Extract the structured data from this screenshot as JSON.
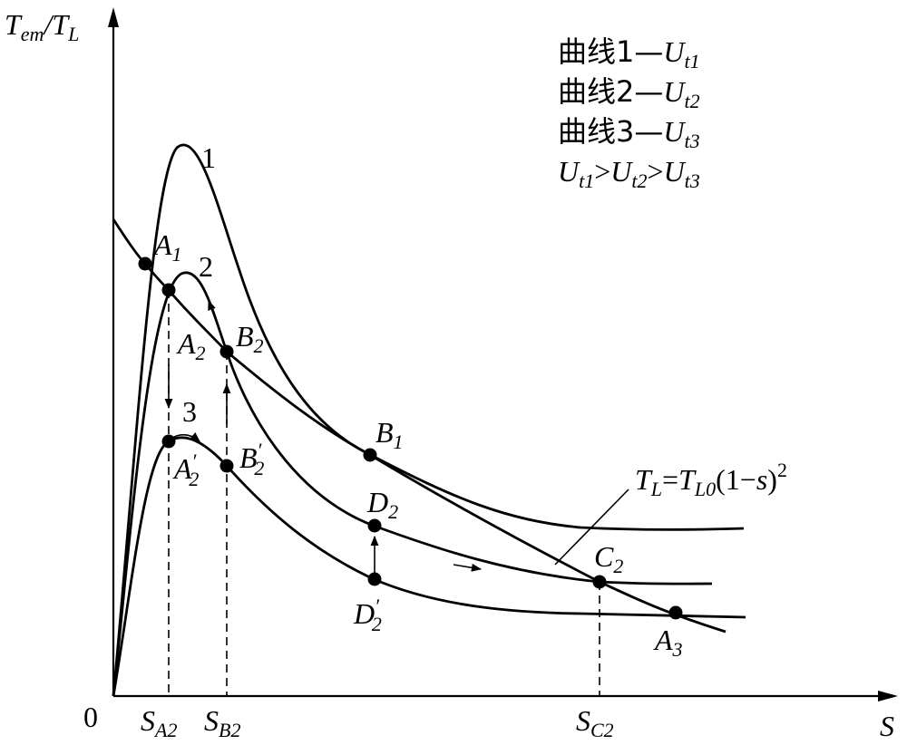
{
  "axes": {
    "y_label_main": "T",
    "y_label_main_sub": "em",
    "y_label_sep": "/T",
    "y_label_sep_sub": "L",
    "x_label": "S",
    "origin": "0"
  },
  "legend": [
    {
      "prefix": "曲线1—",
      "var": "U",
      "sub": "t1"
    },
    {
      "prefix": "曲线2—",
      "var": "U",
      "sub": "t2"
    },
    {
      "prefix": "曲线3—",
      "var": "U",
      "sub": "t3"
    }
  ],
  "legend_relation": {
    "v1": "U",
    "s1": "t1",
    "gt1": ">",
    "v2": "U",
    "s2": "t2",
    "gt2": ">",
    "v3": "U",
    "s3": "t3"
  },
  "curve_labels": {
    "c1": "1",
    "c2": "2",
    "c3": "3"
  },
  "load_label": {
    "T": "T",
    "L": "L",
    "eq": "=",
    "T2": "T",
    "L0": "L0",
    "open": "(1−",
    "s": "s",
    "close": ")",
    "sq": "2"
  },
  "points": {
    "A1": {
      "base": "A",
      "sub": "1"
    },
    "A2": {
      "base": "A",
      "sub": "2"
    },
    "B2": {
      "base": "B",
      "sub": "2"
    },
    "A2p": {
      "base": "A",
      "prime": "′",
      "sub": "2"
    },
    "B2p": {
      "base": "B",
      "prime": "′",
      "sub": "2"
    },
    "B1": {
      "base": "B",
      "sub": "1"
    },
    "D2": {
      "base": "D",
      "sub": "2"
    },
    "D2p": {
      "base": "D",
      "prime": "′",
      "sub": "2"
    },
    "C2": {
      "base": "C",
      "sub": "2"
    },
    "A3": {
      "base": "A",
      "sub": "3"
    }
  },
  "x_ticks": [
    {
      "base": "S",
      "sub": "A2"
    },
    {
      "base": "S",
      "sub": "B2"
    },
    {
      "base": "S",
      "sub": "C2"
    }
  ]
}
